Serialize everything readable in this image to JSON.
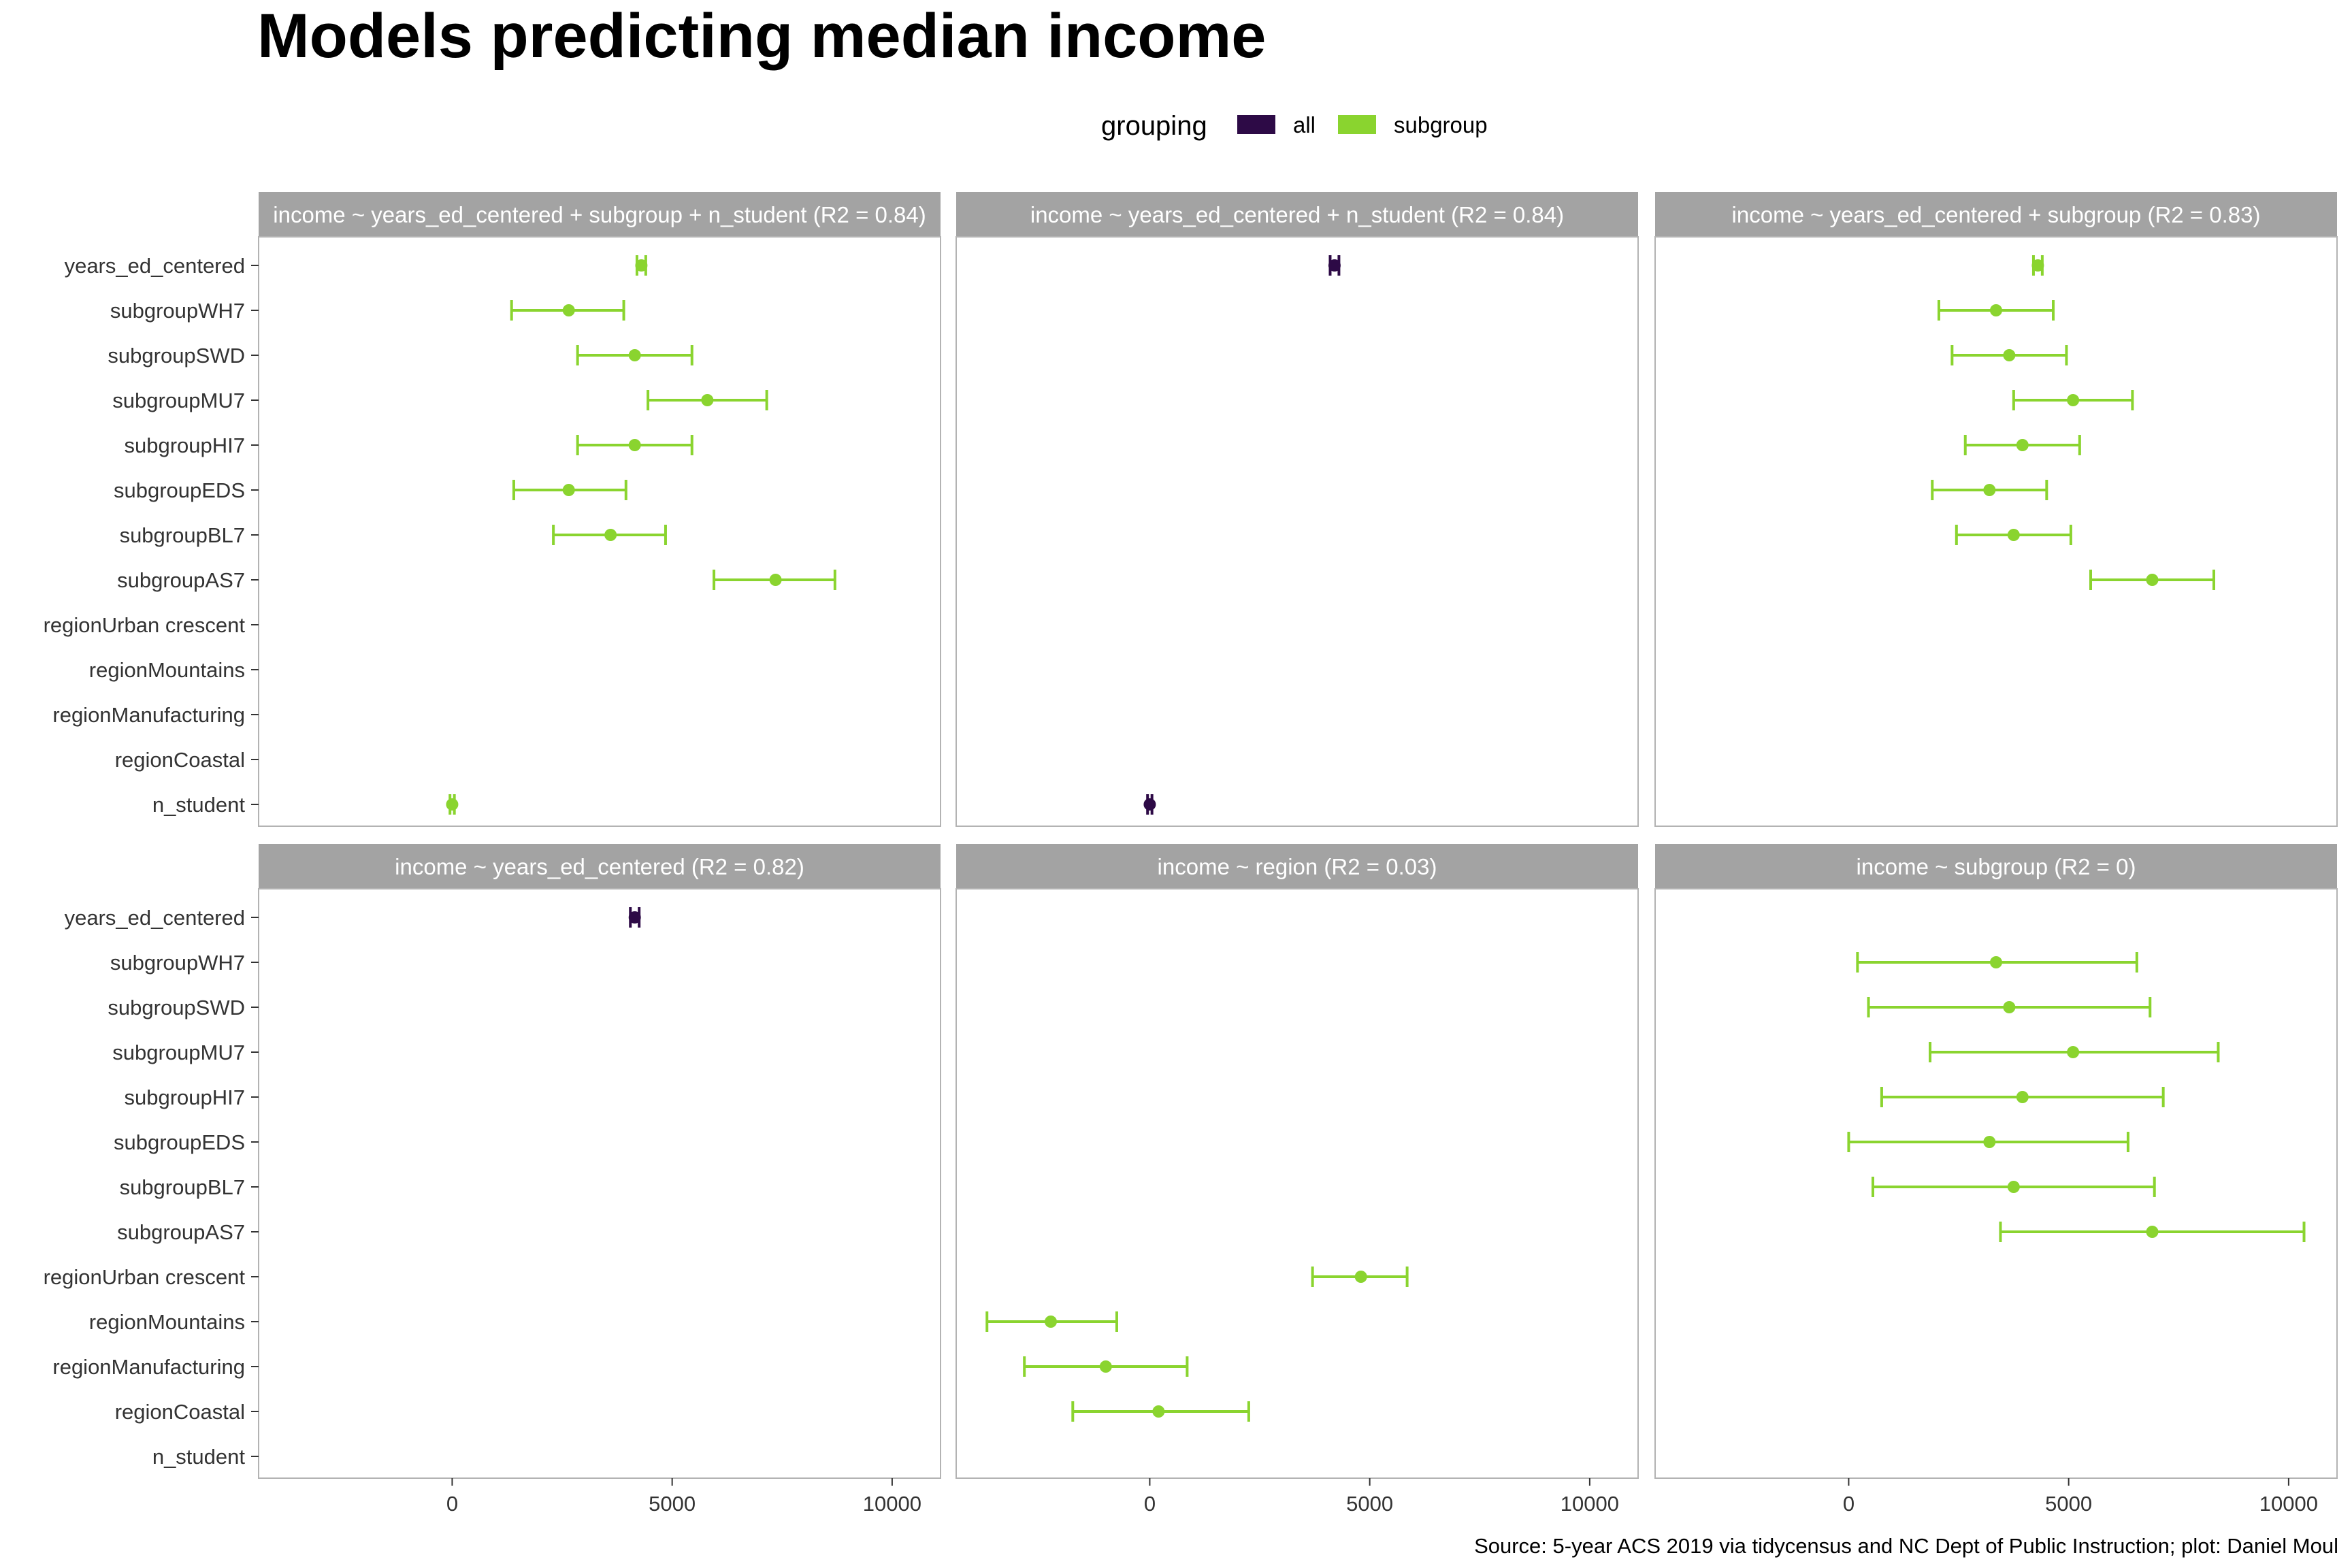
{
  "chart_data": {
    "type": "scatter",
    "title": "Models predicting median income",
    "caption": "Source: 5-year ACS 2019 via tidycensus and NC Dept of Public Instruction; plot: Daniel Moul",
    "legend": {
      "title": "grouping",
      "position": "top",
      "entries": [
        {
          "label": "all",
          "color": "#2D0A46"
        },
        {
          "label": "subgroup",
          "color": "#8AD42F"
        }
      ]
    },
    "terms": [
      "years_ed_centered",
      "subgroupWH7",
      "subgroupSWD",
      "subgroupMU7",
      "subgroupHI7",
      "subgroupEDS",
      "subgroupBL7",
      "subgroupAS7",
      "regionUrban crescent",
      "regionMountains",
      "regionManufacturing",
      "regionCoastal",
      "n_student"
    ],
    "x_ticks": [
      0,
      5000,
      10000
    ],
    "xlim": [
      -4400,
      11100
    ],
    "grid": false,
    "panels": [
      {
        "label": "income ~ years_ed_centered + subgroup + n_student (R2 = 0.84)",
        "points": [
          {
            "term": "years_ed_centered",
            "grouping": "subgroup",
            "estimate": 4300,
            "low": 4200,
            "high": 4400
          },
          {
            "term": "subgroupWH7",
            "grouping": "subgroup",
            "estimate": 2650,
            "low": 1350,
            "high": 3900
          },
          {
            "term": "subgroupSWD",
            "grouping": "subgroup",
            "estimate": 4150,
            "low": 2850,
            "high": 5450
          },
          {
            "term": "subgroupMU7",
            "grouping": "subgroup",
            "estimate": 5800,
            "low": 4450,
            "high": 7150
          },
          {
            "term": "subgroupHI7",
            "grouping": "subgroup",
            "estimate": 4150,
            "low": 2850,
            "high": 5450
          },
          {
            "term": "subgroupEDS",
            "grouping": "subgroup",
            "estimate": 2650,
            "low": 1400,
            "high": 3950
          },
          {
            "term": "subgroupBL7",
            "grouping": "subgroup",
            "estimate": 3600,
            "low": 2300,
            "high": 4850
          },
          {
            "term": "subgroupAS7",
            "grouping": "subgroup",
            "estimate": 7350,
            "low": 5950,
            "high": 8700
          },
          {
            "term": "n_student",
            "grouping": "subgroup",
            "estimate": 0,
            "low": -50,
            "high": 50
          }
        ]
      },
      {
        "label": "income ~ years_ed_centered + n_student (R2 = 0.84)",
        "points": [
          {
            "term": "years_ed_centered",
            "grouping": "all",
            "estimate": 4200,
            "low": 4100,
            "high": 4300
          },
          {
            "term": "n_student",
            "grouping": "all",
            "estimate": 0,
            "low": -50,
            "high": 50
          }
        ]
      },
      {
        "label": "income ~ years_ed_centered + subgroup (R2 = 0.83)",
        "points": [
          {
            "term": "years_ed_centered",
            "grouping": "subgroup",
            "estimate": 4300,
            "low": 4200,
            "high": 4400
          },
          {
            "term": "subgroupWH7",
            "grouping": "subgroup",
            "estimate": 3350,
            "low": 2050,
            "high": 4650
          },
          {
            "term": "subgroupSWD",
            "grouping": "subgroup",
            "estimate": 3650,
            "low": 2350,
            "high": 4950
          },
          {
            "term": "subgroupMU7",
            "grouping": "subgroup",
            "estimate": 5100,
            "low": 3750,
            "high": 6450
          },
          {
            "term": "subgroupHI7",
            "grouping": "subgroup",
            "estimate": 3950,
            "low": 2650,
            "high": 5250
          },
          {
            "term": "subgroupEDS",
            "grouping": "subgroup",
            "estimate": 3200,
            "low": 1900,
            "high": 4500
          },
          {
            "term": "subgroupBL7",
            "grouping": "subgroup",
            "estimate": 3750,
            "low": 2450,
            "high": 5050
          },
          {
            "term": "subgroupAS7",
            "grouping": "subgroup",
            "estimate": 6900,
            "low": 5500,
            "high": 8300
          }
        ]
      },
      {
        "label": "income ~ years_ed_centered (R2 = 0.82)",
        "points": [
          {
            "term": "years_ed_centered",
            "grouping": "all",
            "estimate": 4150,
            "low": 4050,
            "high": 4250
          }
        ]
      },
      {
        "label": "income ~ region (R2 = 0.03)",
        "points": [
          {
            "term": "regionUrban crescent",
            "grouping": "subgroup",
            "estimate": 4800,
            "low": 3700,
            "high": 5850
          },
          {
            "term": "regionMountains",
            "grouping": "subgroup",
            "estimate": -2250,
            "low": -3700,
            "high": -750
          },
          {
            "term": "regionManufacturing",
            "grouping": "subgroup",
            "estimate": -1000,
            "low": -2850,
            "high": 850
          },
          {
            "term": "regionCoastal",
            "grouping": "subgroup",
            "estimate": 200,
            "low": -1750,
            "high": 2250
          }
        ]
      },
      {
        "label": "income ~ subgroup (R2 = 0)",
        "points": [
          {
            "term": "subgroupWH7",
            "grouping": "subgroup",
            "estimate": 3350,
            "low": 200,
            "high": 6550
          },
          {
            "term": "subgroupSWD",
            "grouping": "subgroup",
            "estimate": 3650,
            "low": 450,
            "high": 6850
          },
          {
            "term": "subgroupMU7",
            "grouping": "subgroup",
            "estimate": 5100,
            "low": 1850,
            "high": 8400
          },
          {
            "term": "subgroupHI7",
            "grouping": "subgroup",
            "estimate": 3950,
            "low": 750,
            "high": 7150
          },
          {
            "term": "subgroupEDS",
            "grouping": "subgroup",
            "estimate": 3200,
            "low": 0,
            "high": 6350
          },
          {
            "term": "subgroupBL7",
            "grouping": "subgroup",
            "estimate": 3750,
            "low": 550,
            "high": 6950
          },
          {
            "term": "subgroupAS7",
            "grouping": "subgroup",
            "estimate": 6900,
            "low": 3450,
            "high": 10350
          }
        ]
      }
    ]
  }
}
